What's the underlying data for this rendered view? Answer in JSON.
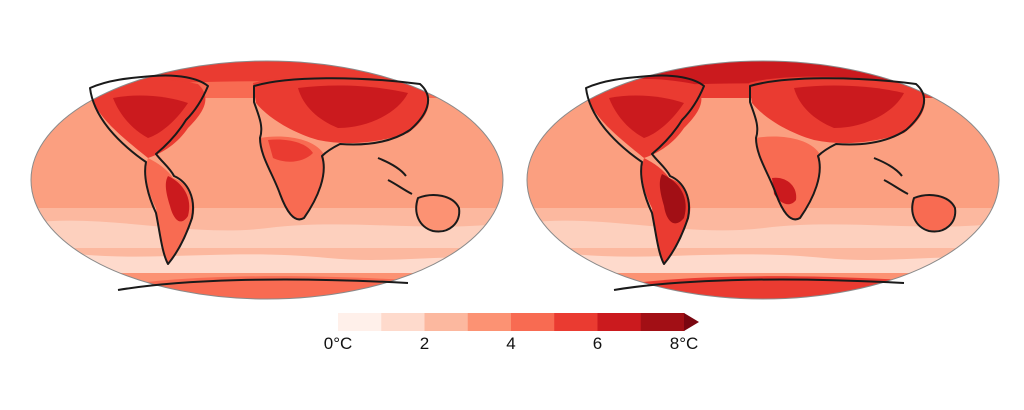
{
  "colorbar": {
    "bins": [
      "#fff0ea",
      "#fedacc",
      "#fcb89f",
      "#fc9273",
      "#f86b52",
      "#ea3b31",
      "#cb1a1e",
      "#a20f15"
    ],
    "extend_color": "#7a0610",
    "ticks": [
      {
        "label": "0°C",
        "value": 0
      },
      {
        "label": "2",
        "value": 2
      },
      {
        "label": "4",
        "value": 4
      },
      {
        "label": "6",
        "value": 6
      },
      {
        "label": "8°C",
        "value": 8
      }
    ],
    "min": 0,
    "max": 8
  }
}
